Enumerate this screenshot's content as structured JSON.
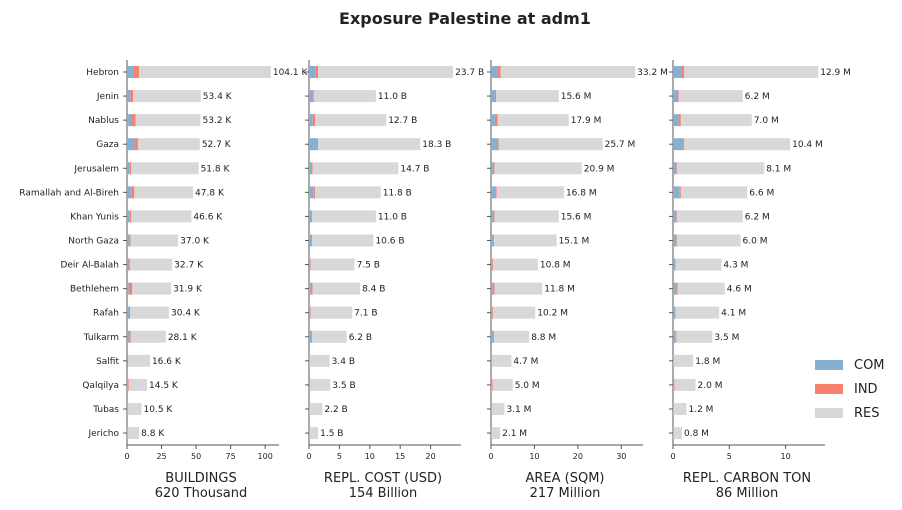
{
  "chart_data": {
    "type": "bar",
    "orientation": "horizontal",
    "stacked": true,
    "title": "Exposure Palestine at adm1",
    "categories": [
      "Hebron",
      "Jenin",
      "Nablus",
      "Gaza",
      "Jerusalem",
      "Ramallah and Al-Bireh",
      "Khan Yunis",
      "North Gaza",
      "Deir Al-Balah",
      "Bethlehem",
      "Rafah",
      "Tulkarm",
      "Salfit",
      "Qalqilya",
      "Tubas",
      "Jericho"
    ],
    "legend": {
      "position": "right",
      "items": [
        {
          "name": "COM",
          "color": "#86b0d2"
        },
        {
          "name": "IND",
          "color": "#f7806f"
        },
        {
          "name": "RES",
          "color": "#d8d8d8"
        }
      ]
    },
    "panels": [
      {
        "xlabel": "BUILDINGS",
        "subtitle": "620 Thousand",
        "xlim": [
          0,
          110
        ],
        "xticks": [
          0,
          25,
          50,
          75,
          100
        ],
        "com": [
          4.6,
          2.4,
          2.9,
          5.6,
          2.1,
          3.4,
          2.0,
          1.9,
          1.1,
          1.3,
          1.4,
          1.9,
          0.3,
          0.5,
          0.2,
          0.3
        ],
        "ind": [
          4.2,
          2.1,
          3.4,
          2.3,
          0.9,
          1.9,
          1.1,
          0.7,
          1.0,
          2.5,
          0.9,
          0.9,
          0.6,
          0.8,
          0.3,
          0.2
        ],
        "res": [
          95.3,
          48.9,
          46.9,
          44.8,
          48.8,
          42.5,
          43.5,
          34.4,
          30.6,
          28.1,
          28.1,
          25.3,
          15.7,
          13.2,
          10.0,
          8.3
        ],
        "labels": [
          "104.1 K",
          "53.4 K",
          "53.2 K",
          "52.7 K",
          "51.8 K",
          "47.8 K",
          "46.6 K",
          "37.0 K",
          "32.7 K",
          "31.9 K",
          "30.4 K",
          "28.1 K",
          "16.6 K",
          "14.5 K",
          "10.5 K",
          "8.8 K"
        ]
      },
      {
        "xlabel": "REPL. COST (USD)",
        "subtitle": "154 Billion",
        "xlim": [
          0,
          25
        ],
        "xticks": [
          0,
          5,
          10,
          15,
          20
        ],
        "com": [
          1.1,
          0.6,
          0.6,
          1.3,
          0.5,
          0.8,
          0.4,
          0.4,
          0.2,
          0.3,
          0.2,
          0.4,
          0.1,
          0.1,
          0.1,
          0.1
        ],
        "ind": [
          0.4,
          0.2,
          0.4,
          0.2,
          0.1,
          0.2,
          0.1,
          0.1,
          0.1,
          0.3,
          0.1,
          0.1,
          0.05,
          0.1,
          0.05,
          0.05
        ],
        "res": [
          22.2,
          10.2,
          11.7,
          16.8,
          14.1,
          10.8,
          10.5,
          10.1,
          7.2,
          7.8,
          6.8,
          5.7,
          3.25,
          3.3,
          2.05,
          1.35
        ],
        "labels": [
          "23.7 B",
          "11.0 B",
          "12.7 B",
          "18.3 B",
          "14.7 B",
          "11.8 B",
          "11.0 B",
          "10.6 B",
          "7.5 B",
          "8.4 B",
          "7.1 B",
          "6.2 B",
          "3.4 B",
          "3.5 B",
          "2.2 B",
          "1.5 B"
        ]
      },
      {
        "xlabel": "AREA (SQM)",
        "subtitle": "217 Million",
        "xlim": [
          0,
          35
        ],
        "xticks": [
          0,
          10,
          20,
          30
        ],
        "com": [
          1.5,
          0.9,
          0.9,
          1.6,
          0.6,
          1.0,
          0.6,
          0.5,
          0.3,
          0.4,
          0.3,
          0.5,
          0.1,
          0.2,
          0.1,
          0.1
        ],
        "ind": [
          0.7,
          0.3,
          0.6,
          0.2,
          0.2,
          0.3,
          0.2,
          0.2,
          0.2,
          0.4,
          0.2,
          0.2,
          0.1,
          0.2,
          0.1,
          0.05
        ],
        "res": [
          31.0,
          14.4,
          16.4,
          23.9,
          20.1,
          15.5,
          14.8,
          14.4,
          10.3,
          11.0,
          9.7,
          8.1,
          4.5,
          4.6,
          2.9,
          1.95
        ],
        "labels": [
          "33.2 M",
          "15.6 M",
          "17.9 M",
          "25.7 M",
          "20.9 M",
          "16.8 M",
          "15.6 M",
          "15.1 M",
          "10.8 M",
          "11.8 M",
          "10.2 M",
          "8.8 M",
          "4.7 M",
          "5.0 M",
          "3.1 M",
          "2.1 M"
        ]
      },
      {
        "xlabel": "REPL. CARBON TON",
        "subtitle": "86 Million",
        "xlim": [
          0,
          13.5
        ],
        "xticks": [
          0,
          5,
          10
        ],
        "com": [
          0.8,
          0.4,
          0.5,
          0.9,
          0.3,
          0.6,
          0.3,
          0.3,
          0.2,
          0.3,
          0.2,
          0.2,
          0.05,
          0.1,
          0.05,
          0.05
        ],
        "ind": [
          0.2,
          0.1,
          0.2,
          0.1,
          0.05,
          0.1,
          0.05,
          0.05,
          0.05,
          0.1,
          0.05,
          0.1,
          0.02,
          0.05,
          0.02,
          0.02
        ],
        "res": [
          11.9,
          5.7,
          6.3,
          9.4,
          7.75,
          5.9,
          5.85,
          5.65,
          4.05,
          4.2,
          3.85,
          3.2,
          1.73,
          1.85,
          1.13,
          0.73
        ],
        "labels": [
          "12.9 M",
          "6.2 M",
          "7.0 M",
          "10.4 M",
          "8.1 M",
          "6.6 M",
          "6.2 M",
          "6.0 M",
          "4.3 M",
          "4.6 M",
          "4.1 M",
          "3.5 M",
          "1.8 M",
          "2.0 M",
          "1.2 M",
          "0.8 M"
        ]
      }
    ]
  }
}
